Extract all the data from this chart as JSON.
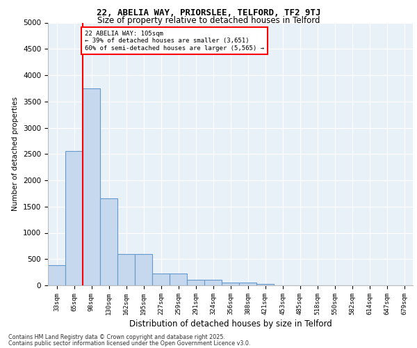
{
  "title1": "22, ABELIA WAY, PRIORSLEE, TELFORD, TF2 9TJ",
  "title2": "Size of property relative to detached houses in Telford",
  "xlabel": "Distribution of detached houses by size in Telford",
  "ylabel": "Number of detached properties",
  "categories": [
    "33sqm",
    "65sqm",
    "98sqm",
    "130sqm",
    "162sqm",
    "195sqm",
    "227sqm",
    "259sqm",
    "291sqm",
    "324sqm",
    "356sqm",
    "388sqm",
    "421sqm",
    "453sqm",
    "485sqm",
    "518sqm",
    "550sqm",
    "582sqm",
    "614sqm",
    "647sqm",
    "679sqm"
  ],
  "values": [
    380,
    2550,
    3750,
    1650,
    600,
    600,
    230,
    230,
    100,
    100,
    50,
    50,
    30,
    0,
    0,
    0,
    0,
    0,
    0,
    0,
    0
  ],
  "bar_color": "#c5d8ee",
  "bar_edge_color": "#6699cc",
  "vline_color": "red",
  "vline_x_idx": 2,
  "annotation_text": "22 ABELIA WAY: 105sqm\n← 39% of detached houses are smaller (3,651)\n60% of semi-detached houses are larger (5,565) →",
  "annotation_box_color": "white",
  "annotation_box_edge_color": "red",
  "ylim": [
    0,
    5000
  ],
  "yticks": [
    0,
    500,
    1000,
    1500,
    2000,
    2500,
    3000,
    3500,
    4000,
    4500,
    5000
  ],
  "bg_color": "#e8f0f8",
  "footer1": "Contains HM Land Registry data © Crown copyright and database right 2025.",
  "footer2": "Contains public sector information licensed under the Open Government Licence v3.0."
}
